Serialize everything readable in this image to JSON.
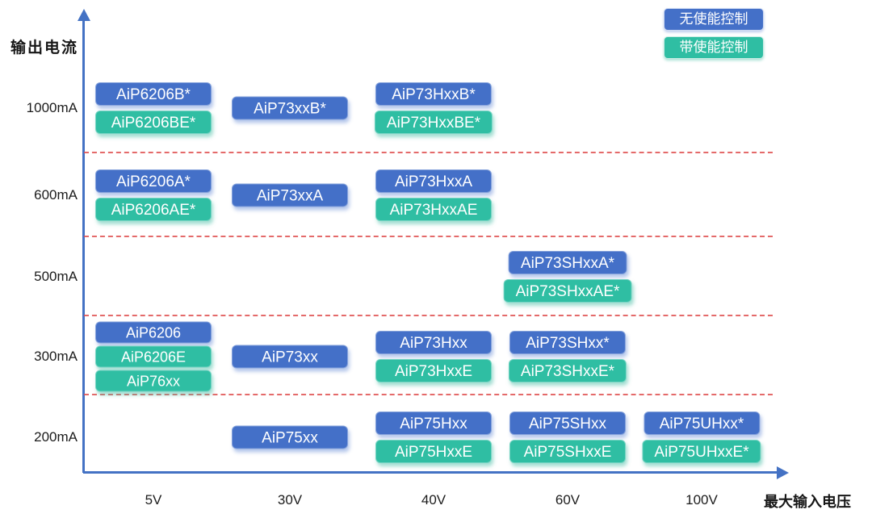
{
  "colors": {
    "blue_no_enable": "#4470C8",
    "teal_with_enable": "#2FBEA3",
    "axis_blue": "#4472C4",
    "separator_red": "#E05151",
    "text_dark": "#1C1C1C",
    "chip_text": "#FFFFFF"
  },
  "legend": {
    "items": [
      {
        "label": "无使能控制",
        "type": "blue"
      },
      {
        "label": "带使能控制",
        "type": "teal"
      }
    ]
  },
  "axes": {
    "y_label": "输出电流",
    "x_label": "最大输入电压",
    "y_ticks": [
      "1000mA",
      "600mA",
      "500mA",
      "300mA",
      "200mA"
    ],
    "x_ticks": [
      "5V",
      "30V",
      "40V",
      "60V",
      "100V"
    ]
  },
  "chart_data": {
    "type": "scatter",
    "title": "",
    "xlabel": "最大输入电压",
    "ylabel": "输出电流",
    "x_categories": [
      "5V",
      "30V",
      "40V",
      "60V",
      "100V"
    ],
    "y_categories": [
      "1000mA",
      "600mA",
      "500mA",
      "300mA",
      "200mA"
    ],
    "legend_entries": [
      {
        "label": "无使能控制",
        "color": "#4470C8"
      },
      {
        "label": "带使能控制",
        "color": "#2FBEA3"
      }
    ],
    "grid": "red dashed horizontal separators between current bands",
    "cells": [
      {
        "current": "1000mA",
        "voltage": "5V",
        "parts": [
          {
            "label": "AiP6206B*",
            "enable": false
          },
          {
            "label": "AiP6206BE*",
            "enable": true
          }
        ]
      },
      {
        "current": "1000mA",
        "voltage": "30V",
        "parts": [
          {
            "label": "AiP73xxB*",
            "enable": false
          }
        ]
      },
      {
        "current": "1000mA",
        "voltage": "40V",
        "parts": [
          {
            "label": "AiP73HxxB*",
            "enable": false
          },
          {
            "label": "AiP73HxxBE*",
            "enable": true
          }
        ]
      },
      {
        "current": "600mA",
        "voltage": "5V",
        "parts": [
          {
            "label": "AiP6206A*",
            "enable": false
          },
          {
            "label": "AiP6206AE*",
            "enable": true
          }
        ]
      },
      {
        "current": "600mA",
        "voltage": "30V",
        "parts": [
          {
            "label": "AiP73xxA",
            "enable": false
          }
        ]
      },
      {
        "current": "600mA",
        "voltage": "40V",
        "parts": [
          {
            "label": "AiP73HxxA",
            "enable": false
          },
          {
            "label": "AiP73HxxAE",
            "enable": true
          }
        ]
      },
      {
        "current": "500mA",
        "voltage": "60V",
        "parts": [
          {
            "label": "AiP73SHxxA*",
            "enable": false
          },
          {
            "label": "AiP73SHxxAE*",
            "enable": true
          }
        ]
      },
      {
        "current": "300mA",
        "voltage": "5V",
        "parts": [
          {
            "label": "AiP6206",
            "enable": false
          },
          {
            "label": "AiP6206E",
            "enable": true
          },
          {
            "label": "AiP76xx",
            "enable": true
          }
        ]
      },
      {
        "current": "300mA",
        "voltage": "30V",
        "parts": [
          {
            "label": "AiP73xx",
            "enable": false
          }
        ]
      },
      {
        "current": "300mA",
        "voltage": "40V",
        "parts": [
          {
            "label": "AiP73Hxx",
            "enable": false
          },
          {
            "label": "AiP73HxxE",
            "enable": true
          }
        ]
      },
      {
        "current": "300mA",
        "voltage": "60V",
        "parts": [
          {
            "label": "AiP73SHxx*",
            "enable": false
          },
          {
            "label": "AiP73SHxxE*",
            "enable": true
          }
        ]
      },
      {
        "current": "200mA",
        "voltage": "30V",
        "parts": [
          {
            "label": "AiP75xx",
            "enable": false
          }
        ]
      },
      {
        "current": "200mA",
        "voltage": "40V",
        "parts": [
          {
            "label": "AiP75Hxx",
            "enable": false
          },
          {
            "label": "AiP75HxxE",
            "enable": true
          }
        ]
      },
      {
        "current": "200mA",
        "voltage": "60V",
        "parts": [
          {
            "label": "AiP75SHxx",
            "enable": false
          },
          {
            "label": "AiP75SHxxE",
            "enable": true
          }
        ]
      },
      {
        "current": "200mA",
        "voltage": "100V",
        "parts": [
          {
            "label": "AiP75UHxx*",
            "enable": false
          },
          {
            "label": "AiP75UHxxE*",
            "enable": true
          }
        ]
      }
    ]
  }
}
